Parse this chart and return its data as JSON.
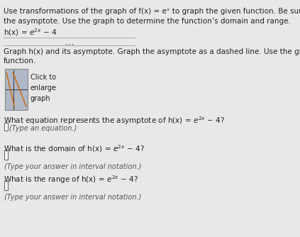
{
  "background_color": "#e8e8e8",
  "graph_box_bg": "#b0b8c8",
  "graph_box_text": "Click to\nenlarge\ngraph",
  "q1_answer_placeholder": "(Type an equation.)",
  "q2_answer_placeholder": "(Type your answer in interval notation.)",
  "q3_answer_placeholder": "(Type your answer in interval notation.)",
  "text_color": "#222222",
  "light_text_color": "#555555",
  "font_size_main": 7.5,
  "font_size_small": 7.0
}
